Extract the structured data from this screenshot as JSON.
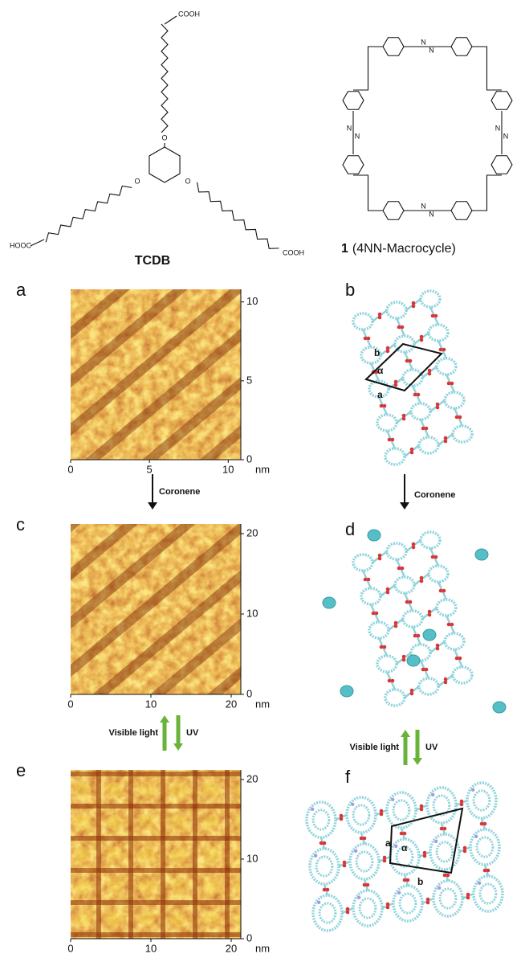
{
  "structures": {
    "tcdb": {
      "oxygen": "O",
      "acid_top": "COOH",
      "acid_left": "HOOC",
      "acid_right": "COOH",
      "label": "TCDB"
    },
    "macrocycle": {
      "nitrogen": "N",
      "number": "1",
      "name": "(4NN-Macrocycle)"
    }
  },
  "stm_images": [
    {
      "letter": "a",
      "xlim": [
        0,
        10.8
      ],
      "ylim": [
        0,
        10.8
      ],
      "xticks": [
        0,
        5,
        10
      ],
      "yticks": [
        0,
        5,
        10
      ],
      "unit": "nm"
    },
    {
      "letter": "c",
      "xlim": [
        0,
        21.2
      ],
      "ylim": [
        0,
        21.2
      ],
      "xticks": [
        0,
        10,
        20
      ],
      "yticks": [
        0,
        10,
        20
      ],
      "unit": "nm"
    },
    {
      "letter": "e",
      "xlim": [
        0,
        21.2
      ],
      "ylim": [
        0,
        21.2
      ],
      "xticks": [
        0,
        10,
        20
      ],
      "yticks": [
        0,
        10,
        20
      ],
      "unit": "nm"
    }
  ],
  "models": [
    {
      "letter": "b",
      "lattice_labels": [
        "b",
        "α",
        "a"
      ]
    },
    {
      "letter": "d"
    },
    {
      "letter": "f",
      "lattice_labels": [
        "a",
        "α",
        "b"
      ]
    }
  ],
  "steps": [
    {
      "label": "Coronene"
    },
    {
      "forward": "Visible light",
      "reverse": "UV"
    }
  ]
}
